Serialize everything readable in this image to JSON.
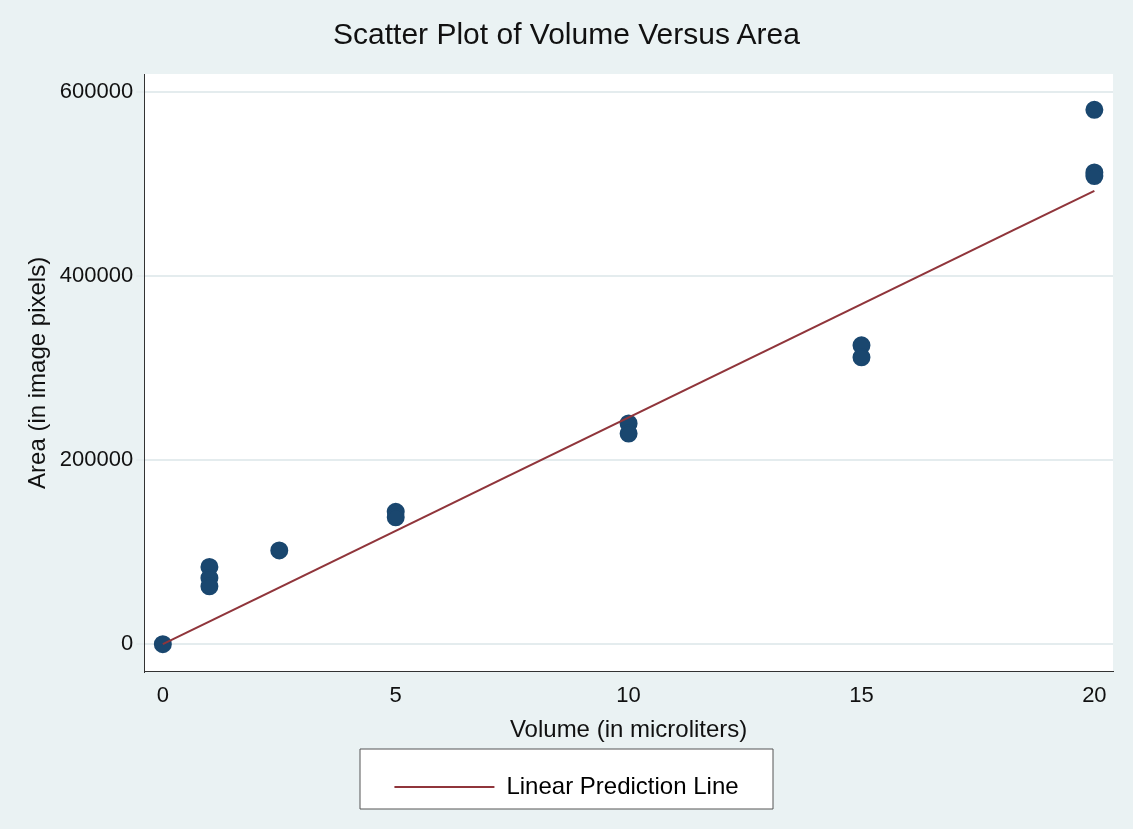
{
  "chart_data": {
    "type": "scatter",
    "title": "Scatter Plot of Volume Versus Area",
    "xlabel": "Volume (in microliters)",
    "ylabel": "Area (in image pixels)",
    "xlim": [
      -0.4,
      20.4
    ],
    "xticks": [
      0,
      5,
      10,
      15,
      20
    ],
    "ylim": [
      -30000,
      620000
    ],
    "yticks": [
      0,
      200000,
      400000,
      600000
    ],
    "grid": "y",
    "legend": "bottom",
    "marker": "circle",
    "series": [
      {
        "color": "#1a476f",
        "x": [
          0,
          1,
          1,
          1,
          2.5,
          5,
          5,
          10,
          10,
          15,
          15,
          20,
          20,
          20
        ],
        "values": [
          0,
          84000,
          72000,
          63000,
          102000,
          144000,
          138000,
          240000,
          229000,
          325000,
          312000,
          581000,
          513000,
          509000
        ]
      },
      {
        "type": "line",
        "name": "Linear Prediction Line",
        "color": "#90353b",
        "marker": "none",
        "line_style": "solid",
        "x": [
          0,
          20
        ],
        "values": [
          0,
          493000
        ]
      }
    ]
  }
}
